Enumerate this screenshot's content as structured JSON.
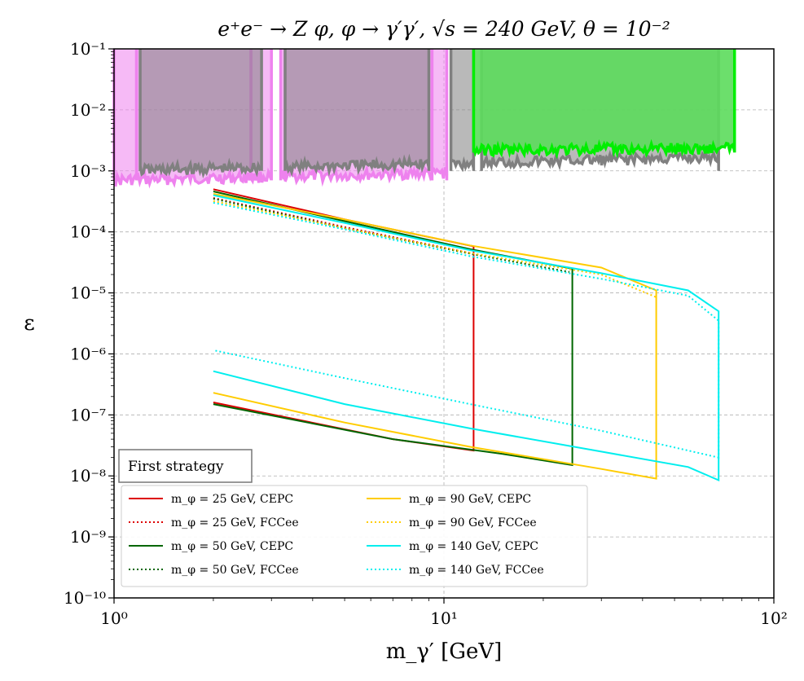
{
  "chart_data": {
    "type": "line",
    "title": "e⁺e⁻ → Z φ, φ → γ′γ′, √s = 240 GeV, θ = 10⁻²",
    "xlabel": "m_γ′ [GeV]",
    "ylabel": "ε",
    "x_scale": "log",
    "y_scale": "log",
    "xlim": [
      1,
      100
    ],
    "ylim": [
      1e-10,
      0.1
    ],
    "x_ticks": [
      {
        "value": 1,
        "label": "10⁰"
      },
      {
        "value": 10,
        "label": "10¹"
      },
      {
        "value": 100,
        "label": "10²"
      }
    ],
    "y_ticks": [
      {
        "value": 1e-10,
        "label": "10⁻¹⁰"
      },
      {
        "value": 1e-09,
        "label": "10⁻⁹"
      },
      {
        "value": 1e-08,
        "label": "10⁻⁸"
      },
      {
        "value": 1e-07,
        "label": "10⁻⁷"
      },
      {
        "value": 1e-06,
        "label": "10⁻⁶"
      },
      {
        "value": 1e-05,
        "label": "10⁻⁵"
      },
      {
        "value": 0.0001,
        "label": "10⁻⁴"
      },
      {
        "value": 0.001,
        "label": "10⁻³"
      },
      {
        "value": 0.01,
        "label": "10⁻²"
      },
      {
        "value": 0.1,
        "label": "10⁻¹"
      }
    ],
    "grid": true,
    "annotation": "First strategy",
    "legend_position": "lower-left",
    "excluded_regions": [
      {
        "color": "#ee82ee",
        "x_ranges": [
          [
            1.0,
            1.17
          ],
          [
            1.17,
            2.6
          ],
          [
            2.6,
            3.0
          ],
          [
            3.2,
            3.3
          ],
          [
            3.3,
            9.2
          ],
          [
            9.2,
            10.2
          ]
        ],
        "lower_edge_approx": 0.0007
      },
      {
        "color": "#808080",
        "x_ranges": [
          [
            1.2,
            2.8
          ],
          [
            3.3,
            9.0
          ],
          [
            10.5,
            12.3
          ],
          [
            13.0,
            68.0
          ]
        ],
        "lower_edge_approx": 0.001
      },
      {
        "color": "#00ee00",
        "x_ranges": [
          [
            12.3,
            76.0
          ]
        ],
        "lower_edge_approx": 0.002,
        "fill": "#5cdb5c"
      }
    ],
    "series": [
      {
        "name": "m_φ = 25 GeV, CEPC",
        "color": "#dd0000",
        "style": "solid",
        "x": [
          2,
          5,
          12.3,
          12.3,
          7,
          2
        ],
        "y": [
          0.0005,
          0.00016,
          5.8e-05,
          2.6e-08,
          4e-08,
          1.6e-07
        ]
      },
      {
        "name": "m_φ = 25 GeV, FCCee",
        "color": "#dd0000",
        "style": "dotted",
        "x": [
          2,
          5,
          12
        ],
        "y": [
          0.00036,
          0.00012,
          4.5e-05
        ]
      },
      {
        "name": "m_φ = 50 GeV, CEPC",
        "color": "#006600",
        "style": "solid",
        "x": [
          2,
          5,
          12,
          24.5,
          24.5,
          15,
          7,
          2
        ],
        "y": [
          0.00046,
          0.00015,
          5.2e-05,
          2.5e-05,
          1.5e-08,
          2.3e-08,
          4e-08,
          1.5e-07
        ]
      },
      {
        "name": "m_φ = 50 GeV, FCCee",
        "color": "#006600",
        "style": "dotted",
        "x": [
          2,
          5,
          12,
          24
        ],
        "y": [
          0.00035,
          0.000115,
          4.4e-05,
          2.2e-05
        ]
      },
      {
        "name": "m_φ = 90 GeV, CEPC",
        "color": "#ffcc00",
        "style": "solid",
        "x": [
          2,
          5,
          12,
          30,
          44,
          44,
          30,
          12,
          5,
          2
        ],
        "y": [
          0.00042,
          0.00016,
          6e-05,
          2.6e-05,
          1.1e-05,
          9e-09,
          1.3e-08,
          3e-08,
          7.5e-08,
          2.3e-07
        ]
      },
      {
        "name": "m_φ = 90 GeV, FCCee",
        "color": "#ffcc00",
        "style": "dotted",
        "x": [
          2,
          5,
          12,
          30,
          44
        ],
        "y": [
          0.00032,
          0.000115,
          4.5e-05,
          2e-05,
          8.5e-06
        ]
      },
      {
        "name": "m_φ = 140 GeV, CEPC",
        "color": "#00eeee",
        "style": "solid",
        "x": [
          2,
          5,
          12,
          30,
          55,
          68,
          68,
          55,
          30,
          12,
          5,
          2
        ],
        "y": [
          0.0004,
          0.00014,
          5e-05,
          2.1e-05,
          1.1e-05,
          5e-06,
          8.5e-09,
          1.4e-08,
          2.5e-08,
          6e-08,
          1.5e-07,
          5.2e-07
        ]
      },
      {
        "name": "m_φ = 140 GeV, FCCee",
        "color": "#00eeee",
        "style": "dotted",
        "x": [
          2,
          5,
          12,
          30,
          55,
          68,
          68,
          55,
          30,
          12,
          5,
          2
        ],
        "y": [
          0.0003,
          0.00011,
          4e-05,
          1.7e-05,
          9e-06,
          3.5e-06,
          2e-08,
          2.6e-08,
          5.5e-08,
          1.5e-07,
          4e-07,
          1.15e-06
        ]
      }
    ]
  }
}
